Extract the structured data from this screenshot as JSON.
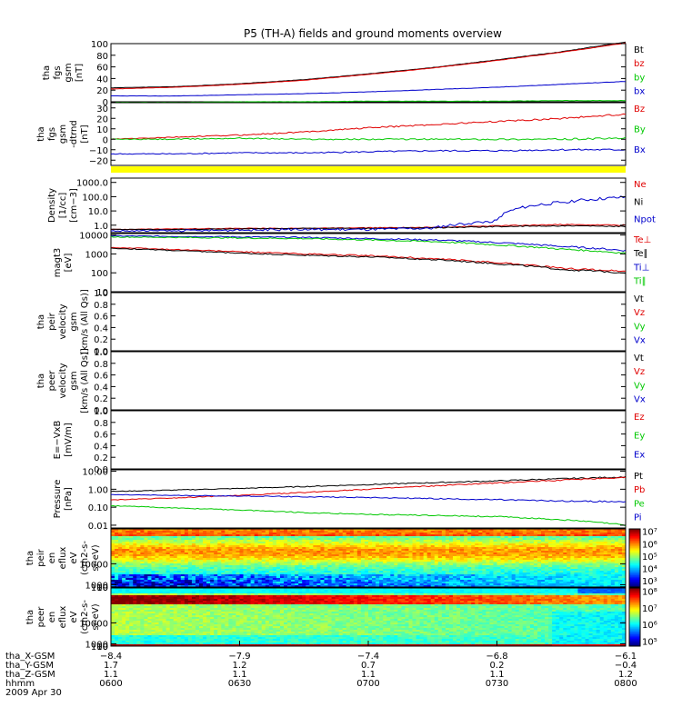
{
  "title": "P5 (TH-A) fields and ground moments overview",
  "colors": {
    "black": "#000000",
    "red": "#e00000",
    "green": "#00c800",
    "blue": "#0000cc",
    "yellow": "#ffff00"
  },
  "chart_data": [
    {
      "id": "fgs_mag",
      "type": "line",
      "ylabel": [
        "tha",
        "fgs",
        "gsm",
        "[nT]"
      ],
      "ylim": [
        0,
        100
      ],
      "yticks": [
        "0",
        "20",
        "40",
        "60",
        "80",
        "100"
      ],
      "x": [
        "06:00",
        "06:15",
        "06:30",
        "06:45",
        "07:00",
        "07:15",
        "07:30",
        "07:45",
        "08:00"
      ],
      "series": [
        {
          "name": "Bt",
          "color": "black",
          "values": [
            24,
            26,
            31,
            38,
            48,
            59,
            72,
            86,
            103
          ]
        },
        {
          "name": "bz",
          "color": "red",
          "values": [
            22,
            25,
            30,
            37,
            47,
            58,
            71,
            85,
            101
          ]
        },
        {
          "name": "by",
          "color": "green",
          "values": [
            -1,
            -1,
            0,
            0,
            1,
            1,
            1,
            2,
            2
          ]
        },
        {
          "name": "bx",
          "color": "blue",
          "values": [
            10,
            10,
            12,
            14,
            17,
            21,
            25,
            30,
            35
          ]
        }
      ]
    },
    {
      "id": "fgs_dtrend",
      "type": "line",
      "ylabel": [
        "tha",
        "fgs",
        "gsm",
        "-dtrnd",
        "[nT]"
      ],
      "ylim": [
        -25,
        35
      ],
      "yticks": [
        "−20",
        "−10",
        "0",
        "10",
        "20",
        "30"
      ],
      "x": [
        "06:00",
        "06:15",
        "06:30",
        "06:45",
        "07:00",
        "07:15",
        "07:30",
        "07:45",
        "08:00"
      ],
      "series": [
        {
          "name": "Bz",
          "color": "red",
          "values": [
            0,
            2,
            4,
            7,
            11,
            14,
            17,
            20,
            24
          ]
        },
        {
          "name": "By",
          "color": "green",
          "values": [
            0,
            0,
            1,
            0,
            0,
            0,
            0,
            0,
            1
          ]
        },
        {
          "name": "Bx",
          "color": "blue",
          "values": [
            -14,
            -14,
            -13,
            -13,
            -12,
            -11,
            -11,
            -10,
            -10
          ]
        }
      ]
    },
    {
      "id": "flag_bar",
      "type": "bar",
      "fill": "yellow"
    },
    {
      "id": "density",
      "type": "line",
      "scale": "log",
      "ylabel": [
        "Density",
        "[1/cc]",
        "[cm−3]"
      ],
      "ylim": [
        0.3,
        2000
      ],
      "yticks": [
        "1000.0",
        "100.0",
        "10.0",
        "1.0"
      ],
      "ytick_values": [
        1000,
        100,
        10,
        1
      ],
      "x": [
        "06:00",
        "06:15",
        "06:30",
        "06:45",
        "07:00",
        "07:15",
        "07:30",
        "07:45",
        "08:00"
      ],
      "series": [
        {
          "name": "Ne",
          "color": "red",
          "values": [
            0.5,
            0.55,
            0.6,
            0.6,
            0.65,
            0.7,
            0.9,
            1.1,
            1.0
          ]
        },
        {
          "name": "Ni",
          "color": "black",
          "values": [
            0.5,
            0.5,
            0.55,
            0.6,
            0.6,
            0.65,
            0.8,
            0.9,
            0.8
          ]
        },
        {
          "name": "Npot",
          "color": "blue",
          "values": [
            0.4,
            0.4,
            0.45,
            0.5,
            0.5,
            0.6,
            2,
            40,
            90
          ]
        }
      ]
    },
    {
      "id": "temperature",
      "type": "line",
      "scale": "log",
      "ylabel": [
        "magt3",
        "[eV]"
      ],
      "ylim": [
        10,
        12000
      ],
      "yticks": [
        "10000",
        "1000",
        "100",
        "10"
      ],
      "ytick_values": [
        10000,
        1000,
        100,
        10
      ],
      "x": [
        "06:00",
        "06:15",
        "06:30",
        "06:45",
        "07:00",
        "07:15",
        "07:30",
        "07:45",
        "08:00"
      ],
      "series": [
        {
          "name": "Te⊥",
          "color": "red",
          "values": [
            2200,
            1700,
            1300,
            1000,
            800,
            550,
            350,
            170,
            120
          ]
        },
        {
          "name": "Te∥",
          "color": "black",
          "values": [
            2000,
            1500,
            1100,
            850,
            700,
            500,
            300,
            150,
            100
          ]
        },
        {
          "name": "Ti⊥",
          "color": "blue",
          "values": [
            9000,
            8500,
            8000,
            7500,
            6500,
            5500,
            4000,
            2500,
            1500
          ]
        },
        {
          "name": "Ti∥",
          "color": "green",
          "values": [
            8000,
            7500,
            7000,
            6500,
            5500,
            4500,
            3000,
            1800,
            1100
          ]
        }
      ]
    },
    {
      "id": "peir_vel",
      "type": "line",
      "ylabel": [
        "tha",
        "peir",
        "velocity",
        "gsm",
        "[km/s (All Qs)]"
      ],
      "ylim": [
        0,
        1.0
      ],
      "yticks": [
        "1.0",
        "0.8",
        "0.6",
        "0.4",
        "0.2",
        "0.0"
      ],
      "series": [
        {
          "name": "Vt",
          "color": "black",
          "values": []
        },
        {
          "name": "Vz",
          "color": "red",
          "values": []
        },
        {
          "name": "Vy",
          "color": "green",
          "values": []
        },
        {
          "name": "Vx",
          "color": "blue",
          "values": []
        }
      ]
    },
    {
      "id": "peer_vel",
      "type": "line",
      "ylabel": [
        "tha",
        "peer",
        "velocity",
        "gsm",
        "[km/s (All Qs)]"
      ],
      "ylim": [
        0,
        1.0
      ],
      "yticks": [
        "1.0",
        "0.8",
        "0.6",
        "0.4",
        "0.2",
        "0.0"
      ],
      "series": [
        {
          "name": "Vt",
          "color": "black",
          "values": []
        },
        {
          "name": "Vz",
          "color": "red",
          "values": []
        },
        {
          "name": "Vy",
          "color": "green",
          "values": []
        },
        {
          "name": "Vx",
          "color": "blue",
          "values": []
        }
      ]
    },
    {
      "id": "efield",
      "type": "line",
      "ylabel": [
        "E=−VxB",
        "[mV/m]"
      ],
      "ylim": [
        0,
        1.0
      ],
      "yticks": [
        "1.0",
        "0.8",
        "0.6",
        "0.4",
        "0.2",
        "0.0"
      ],
      "series": [
        {
          "name": "Ez",
          "color": "red",
          "values": []
        },
        {
          "name": "Ey",
          "color": "green",
          "values": []
        },
        {
          "name": "Ex",
          "color": "blue",
          "values": []
        }
      ]
    },
    {
      "id": "pressure",
      "type": "line",
      "scale": "log",
      "ylabel": [
        "Pressure",
        "[nPa]"
      ],
      "ylim": [
        0.007,
        12
      ],
      "yticks": [
        "10.00",
        "1.00",
        "0.10",
        "0.01"
      ],
      "ytick_values": [
        10,
        1,
        0.1,
        0.01
      ],
      "x": [
        "06:00",
        "06:15",
        "06:30",
        "06:45",
        "07:00",
        "07:15",
        "07:30",
        "07:45",
        "08:00"
      ],
      "series": [
        {
          "name": "Pt",
          "color": "black",
          "values": [
            0.75,
            0.9,
            1.1,
            1.4,
            1.8,
            2.3,
            2.9,
            3.8,
            4.8
          ]
        },
        {
          "name": "Pb",
          "color": "red",
          "values": [
            0.25,
            0.33,
            0.45,
            0.65,
            1.0,
            1.5,
            2.2,
            3.2,
            4.5
          ]
        },
        {
          "name": "Pe",
          "color": "green",
          "values": [
            0.12,
            0.09,
            0.07,
            0.05,
            0.04,
            0.035,
            0.03,
            0.02,
            0.01
          ]
        },
        {
          "name": "Pi",
          "color": "blue",
          "values": [
            0.5,
            0.45,
            0.42,
            0.38,
            0.35,
            0.3,
            0.26,
            0.22,
            0.2
          ]
        }
      ]
    },
    {
      "id": "peir_spec",
      "type": "heatmap",
      "ylabel": [
        "tha",
        "peir",
        "en",
        "eflux",
        "eV",
        "(cm2-s-",
        "sr-eV)"
      ],
      "ylim": [
        7,
        25000
      ],
      "yticks": [
        "10000",
        "1000",
        "100",
        "10"
      ],
      "ytick_values": [
        10000,
        1000,
        100,
        10
      ],
      "colorbar_ticks": [
        "10⁷",
        "10⁶",
        "10⁵",
        "10⁴",
        "10³"
      ],
      "colorbar_range": [
        2.5,
        7.2
      ]
    },
    {
      "id": "peer_spec",
      "type": "heatmap",
      "ylabel": [
        "tha",
        "peer",
        "en",
        "eflux",
        "eV",
        "(cm2-s-",
        "sr-eV)"
      ],
      "ylim": [
        7,
        25000
      ],
      "yticks": [
        "10000",
        "1000",
        "100",
        "10"
      ],
      "ytick_values": [
        10000,
        1000,
        100,
        10
      ],
      "colorbar_ticks": [
        "10⁸",
        "10⁷",
        "10⁶",
        "10⁵"
      ],
      "colorbar_range": [
        4.7,
        8.2
      ]
    }
  ],
  "x_axis": {
    "rows": [
      {
        "label": "tha_X-GSM",
        "values": [
          "−8.4",
          "−7.9",
          "−7.4",
          "−6.8",
          "−6.1"
        ]
      },
      {
        "label": "tha_Y-GSM",
        "values": [
          "1.7",
          "1.2",
          "0.7",
          "0.2",
          "−0.4"
        ]
      },
      {
        "label": "tha_Z-GSM",
        "values": [
          "1.1",
          "1.1",
          "1.1",
          "1.1",
          "1.2"
        ]
      },
      {
        "label": "hhmm",
        "values": [
          "0600",
          "0630",
          "0700",
          "0730",
          "0800"
        ]
      }
    ],
    "date": "2009 Apr 30"
  }
}
